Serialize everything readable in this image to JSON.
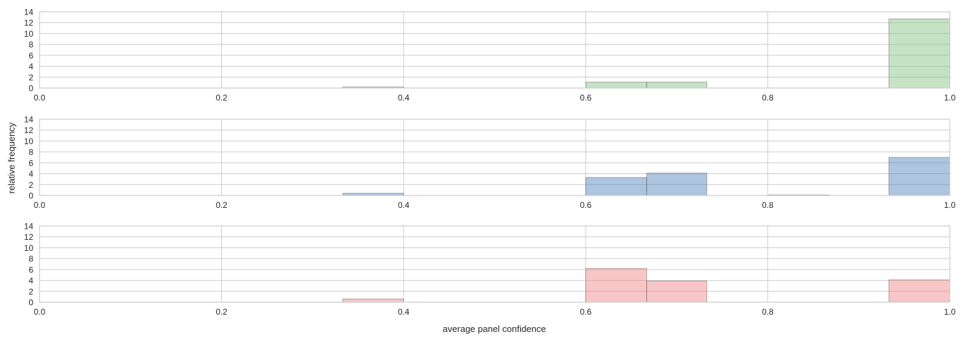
{
  "figure": {
    "ylabel": "relative frequency",
    "xlabel": "average panel confidence"
  },
  "chart_data": [
    {
      "type": "bar",
      "color": "#7fbf7f",
      "xlim": [
        0.0,
        1.0
      ],
      "ylim": [
        0,
        14
      ],
      "xticks": [
        "0.0",
        "0.2",
        "0.4",
        "0.6",
        "0.8",
        "1.0"
      ],
      "yticks": [
        "0",
        "2",
        "4",
        "6",
        "8",
        "10",
        "12",
        "14"
      ],
      "grid": true,
      "bins": [
        {
          "x0": 0.333,
          "x1": 0.4,
          "value": 0.2
        },
        {
          "x0": 0.6,
          "x1": 0.667,
          "value": 1.1
        },
        {
          "x0": 0.667,
          "x1": 0.733,
          "value": 1.1
        },
        {
          "x0": 0.933,
          "x1": 1.0,
          "value": 12.7
        }
      ]
    },
    {
      "type": "bar",
      "color": "#4a7eb8",
      "xlim": [
        0.0,
        1.0
      ],
      "ylim": [
        0,
        14
      ],
      "xticks": [
        "0.0",
        "0.2",
        "0.4",
        "0.6",
        "0.8",
        "1.0"
      ],
      "yticks": [
        "0",
        "2",
        "4",
        "6",
        "8",
        "10",
        "12",
        "14"
      ],
      "grid": true,
      "bins": [
        {
          "x0": 0.333,
          "x1": 0.4,
          "value": 0.4
        },
        {
          "x0": 0.6,
          "x1": 0.667,
          "value": 3.3
        },
        {
          "x0": 0.667,
          "x1": 0.733,
          "value": 4.1
        },
        {
          "x0": 0.8,
          "x1": 0.867,
          "value": 0.1
        },
        {
          "x0": 0.933,
          "x1": 1.0,
          "value": 7.0
        }
      ]
    },
    {
      "type": "bar",
      "color": "#f08080",
      "xlim": [
        0.0,
        1.0
      ],
      "ylim": [
        0,
        14
      ],
      "xticks": [
        "0.0",
        "0.2",
        "0.4",
        "0.6",
        "0.8",
        "1.0"
      ],
      "yticks": [
        "0",
        "2",
        "4",
        "6",
        "8",
        "10",
        "12",
        "14"
      ],
      "grid": true,
      "bins": [
        {
          "x0": 0.333,
          "x1": 0.4,
          "value": 0.6
        },
        {
          "x0": 0.6,
          "x1": 0.667,
          "value": 6.2
        },
        {
          "x0": 0.667,
          "x1": 0.733,
          "value": 3.9
        },
        {
          "x0": 0.933,
          "x1": 1.0,
          "value": 4.1
        }
      ]
    }
  ]
}
